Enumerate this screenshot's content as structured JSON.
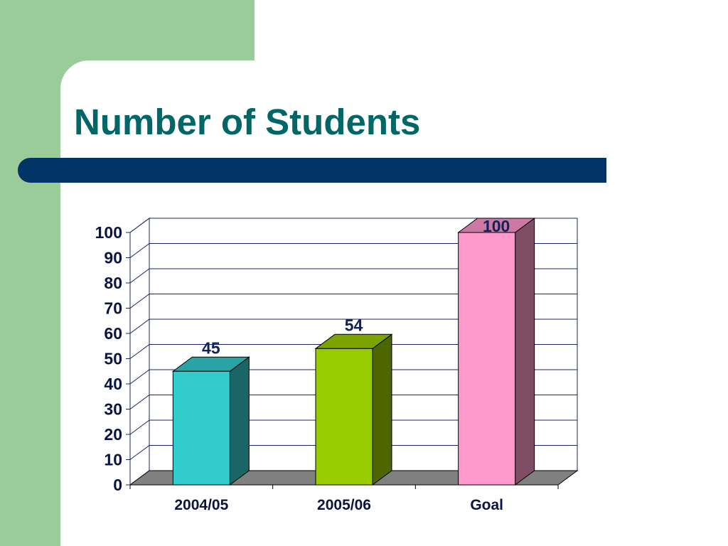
{
  "theme": {
    "panel_green": "#99CC99",
    "band_navy": "#003366",
    "title_teal": "#006666"
  },
  "chart_data": {
    "type": "bar",
    "style": "3d-column",
    "title": "Number of Students",
    "xlabel": "",
    "ylabel": "",
    "categories": [
      "2004/05",
      "2005/06",
      "Goal"
    ],
    "values": [
      45,
      54,
      100
    ],
    "show_data_labels": true,
    "colors": [
      "#33CCCC",
      "#99CC00",
      "#FF99CC"
    ],
    "ylim": [
      0,
      100
    ],
    "y_ticks": [
      0,
      10,
      20,
      30,
      40,
      50,
      60,
      70,
      80,
      90,
      100
    ],
    "grid": true,
    "legend": "none",
    "floor_color": "#808080"
  }
}
